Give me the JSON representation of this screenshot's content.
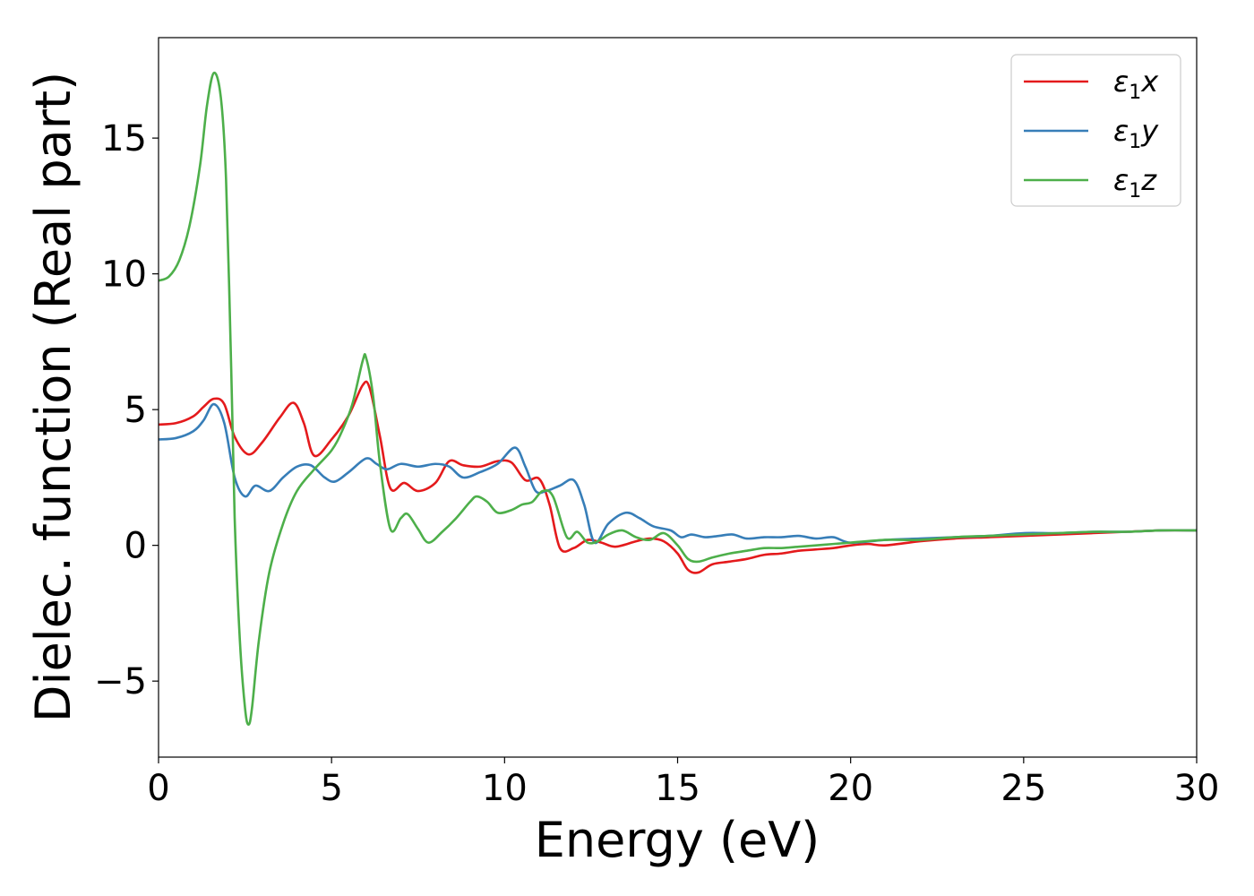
{
  "chart_data": {
    "type": "line",
    "title": "",
    "xlabel": "Energy (eV)",
    "ylabel": "Dielec. function (Real part)",
    "xlim": [
      0,
      30
    ],
    "ylim": [
      -7.8,
      18.7
    ],
    "xticks": [
      0,
      5,
      10,
      15,
      20,
      25,
      30
    ],
    "xtick_labels": [
      "0",
      "5",
      "10",
      "15",
      "20",
      "25",
      "30"
    ],
    "yticks": [
      -5,
      0,
      5,
      10,
      15
    ],
    "ytick_labels": [
      "−5",
      "0",
      "5",
      "10",
      "15"
    ],
    "grid": false,
    "legend_position": "top-right",
    "series": [
      {
        "name": "ε₁x",
        "label_base": "ε",
        "label_sub": "1",
        "label_var": "x",
        "color": "#e41a1c",
        "x": [
          0,
          0.5,
          1.0,
          1.3,
          1.6,
          1.9,
          2.2,
          2.6,
          3.0,
          3.5,
          3.9,
          4.2,
          4.5,
          5.0,
          5.5,
          5.9,
          6.1,
          6.4,
          6.7,
          7.1,
          7.5,
          8.0,
          8.4,
          8.8,
          9.3,
          9.8,
          10.2,
          10.6,
          11.0,
          11.3,
          11.6,
          12.0,
          12.4,
          12.8,
          13.2,
          13.8,
          14.2,
          14.6,
          15.0,
          15.3,
          15.6,
          16.0,
          16.5,
          17.0,
          17.5,
          18.0,
          18.5,
          19.0,
          19.5,
          20.0,
          20.5,
          21.0,
          22.0,
          23.0,
          24.0,
          25.0,
          26.0,
          27.0,
          28.0,
          29.0,
          30.0
        ],
        "y": [
          4.45,
          4.5,
          4.75,
          5.1,
          5.4,
          5.2,
          4.0,
          3.35,
          3.8,
          4.7,
          5.25,
          4.5,
          3.3,
          3.9,
          4.8,
          5.9,
          5.8,
          4.0,
          2.1,
          2.3,
          2.0,
          2.3,
          3.1,
          2.95,
          2.9,
          3.1,
          3.05,
          2.4,
          2.45,
          1.5,
          -0.1,
          -0.1,
          0.2,
          0.1,
          -0.05,
          0.15,
          0.25,
          0.15,
          -0.3,
          -0.9,
          -1.0,
          -0.7,
          -0.6,
          -0.5,
          -0.35,
          -0.3,
          -0.2,
          -0.15,
          -0.1,
          0.0,
          0.05,
          0.0,
          0.15,
          0.25,
          0.3,
          0.35,
          0.4,
          0.45,
          0.5,
          0.55,
          0.55
        ]
      },
      {
        "name": "ε₁y",
        "label_base": "ε",
        "label_sub": "1",
        "label_var": "y",
        "color": "#377eb8",
        "x": [
          0,
          0.5,
          1.0,
          1.3,
          1.6,
          1.9,
          2.2,
          2.5,
          2.8,
          3.2,
          3.6,
          4.0,
          4.4,
          4.8,
          5.1,
          5.5,
          6.0,
          6.3,
          6.6,
          7.0,
          7.5,
          8.0,
          8.4,
          8.8,
          9.3,
          9.8,
          10.3,
          10.6,
          10.9,
          11.2,
          11.6,
          12.0,
          12.3,
          12.6,
          13.0,
          13.5,
          13.9,
          14.3,
          14.8,
          15.1,
          15.4,
          15.8,
          16.2,
          16.6,
          17.0,
          17.5,
          18.0,
          18.5,
          19.0,
          19.5,
          20.0,
          21.0,
          22.0,
          23.0,
          24.0,
          25.0,
          26.0,
          27.0,
          28.0,
          29.0,
          30.0
        ],
        "y": [
          3.9,
          3.95,
          4.2,
          4.6,
          5.2,
          4.5,
          2.5,
          1.8,
          2.2,
          2.0,
          2.5,
          2.9,
          2.95,
          2.5,
          2.35,
          2.7,
          3.2,
          3.0,
          2.8,
          3.0,
          2.9,
          3.0,
          2.9,
          2.5,
          2.7,
          3.0,
          3.6,
          2.9,
          2.0,
          2.0,
          2.2,
          2.4,
          1.5,
          0.1,
          0.8,
          1.2,
          1.0,
          0.7,
          0.55,
          0.3,
          0.4,
          0.3,
          0.35,
          0.4,
          0.25,
          0.3,
          0.3,
          0.35,
          0.25,
          0.3,
          0.1,
          0.2,
          0.25,
          0.3,
          0.35,
          0.45,
          0.45,
          0.5,
          0.5,
          0.55,
          0.55
        ]
      },
      {
        "name": "ε₁z",
        "label_base": "ε",
        "label_sub": "1",
        "label_var": "z",
        "color": "#4daf4a",
        "x": [
          0,
          0.3,
          0.6,
          0.9,
          1.2,
          1.4,
          1.6,
          1.8,
          1.95,
          2.1,
          2.2,
          2.35,
          2.5,
          2.6,
          2.7,
          2.9,
          3.2,
          3.6,
          4.0,
          4.5,
          5.0,
          5.3,
          5.6,
          5.9,
          6.0,
          6.2,
          6.4,
          6.7,
          7.0,
          7.2,
          7.5,
          7.8,
          8.2,
          8.6,
          9.0,
          9.2,
          9.5,
          9.8,
          10.2,
          10.5,
          10.8,
          11.1,
          11.4,
          11.8,
          12.1,
          12.4,
          12.7,
          13.0,
          13.4,
          13.8,
          14.2,
          14.6,
          15.0,
          15.3,
          15.6,
          16.0,
          16.5,
          17.0,
          17.5,
          18.0,
          18.5,
          19.0,
          19.5,
          20.0,
          21.0,
          22.0,
          23.0,
          24.0,
          25.0,
          26.0,
          27.0,
          28.0,
          29.0,
          30.0
        ],
        "y": [
          9.75,
          9.9,
          10.5,
          11.8,
          14.0,
          16.2,
          17.4,
          16.5,
          13.5,
          6.5,
          1.0,
          -3.5,
          -6.0,
          -6.6,
          -6.0,
          -3.5,
          -1.0,
          0.8,
          2.0,
          2.8,
          3.5,
          4.2,
          5.2,
          6.8,
          6.9,
          5.5,
          3.0,
          0.6,
          1.0,
          1.15,
          0.6,
          0.1,
          0.5,
          1.0,
          1.6,
          1.8,
          1.6,
          1.2,
          1.3,
          1.5,
          1.6,
          2.0,
          1.8,
          0.3,
          0.5,
          0.1,
          0.15,
          0.4,
          0.55,
          0.3,
          0.2,
          0.45,
          0.0,
          -0.5,
          -0.6,
          -0.45,
          -0.3,
          -0.2,
          -0.1,
          -0.1,
          -0.05,
          0.0,
          0.05,
          0.1,
          0.2,
          0.2,
          0.3,
          0.35,
          0.4,
          0.45,
          0.5,
          0.5,
          0.55,
          0.55
        ]
      }
    ]
  }
}
